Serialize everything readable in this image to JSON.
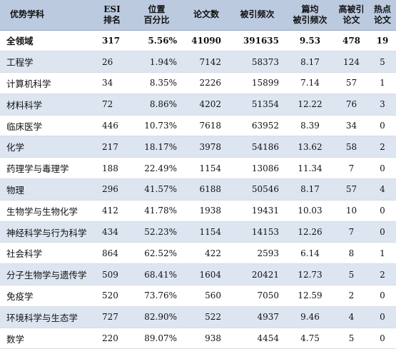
{
  "headers": {
    "subject": "优势学科",
    "rank_l1": "ESI",
    "rank_l2": "排名",
    "pct_l1": "位置",
    "pct_l2": "百分比",
    "papers": "论文数",
    "citations": "被引频次",
    "cpp_l1": "篇均",
    "cpp_l2": "被引频次",
    "hc_l1": "高被引",
    "hc_l2": "论文",
    "hot_l1": "热点",
    "hot_l2": "论文"
  },
  "total": {
    "subject": "全领域",
    "rank": "317",
    "pct": "5.56%",
    "papers": "41090",
    "citations": "391635",
    "cpp": "9.53",
    "hc": "478",
    "hot": "19"
  },
  "rows": [
    {
      "subject": "工程学",
      "rank": "26",
      "pct": "1.94%",
      "papers": "7142",
      "citations": "58373",
      "cpp": "8.17",
      "hc": "124",
      "hot": "5"
    },
    {
      "subject": "计算机科学",
      "rank": "34",
      "pct": "8.35%",
      "papers": "2226",
      "citations": "15899",
      "cpp": "7.14",
      "hc": "57",
      "hot": "1"
    },
    {
      "subject": "材料科学",
      "rank": "72",
      "pct": "8.86%",
      "papers": "4202",
      "citations": "51354",
      "cpp": "12.22",
      "hc": "76",
      "hot": "3"
    },
    {
      "subject": "临床医学",
      "rank": "446",
      "pct": "10.73%",
      "papers": "7618",
      "citations": "63952",
      "cpp": "8.39",
      "hc": "34",
      "hot": "0"
    },
    {
      "subject": "化学",
      "rank": "217",
      "pct": "18.17%",
      "papers": "3978",
      "citations": "54186",
      "cpp": "13.62",
      "hc": "58",
      "hot": "2"
    },
    {
      "subject": "药理学与毒理学",
      "rank": "188",
      "pct": "22.49%",
      "papers": "1154",
      "citations": "13086",
      "cpp": "11.34",
      "hc": "7",
      "hot": "0"
    },
    {
      "subject": "物理",
      "rank": "296",
      "pct": "41.57%",
      "papers": "6188",
      "citations": "50546",
      "cpp": "8.17",
      "hc": "57",
      "hot": "4"
    },
    {
      "subject": "生物学与生物化学",
      "rank": "412",
      "pct": "41.78%",
      "papers": "1938",
      "citations": "19431",
      "cpp": "10.03",
      "hc": "10",
      "hot": "0"
    },
    {
      "subject": "神经科学与行为科学",
      "rank": "434",
      "pct": "52.23%",
      "papers": "1154",
      "citations": "14153",
      "cpp": "12.26",
      "hc": "7",
      "hot": "0"
    },
    {
      "subject": "社会科学",
      "rank": "864",
      "pct": "62.52%",
      "papers": "422",
      "citations": "2593",
      "cpp": "6.14",
      "hc": "8",
      "hot": "1"
    },
    {
      "subject": "分子生物学与遗传学",
      "rank": "509",
      "pct": "68.41%",
      "papers": "1604",
      "citations": "20421",
      "cpp": "12.73",
      "hc": "5",
      "hot": "2"
    },
    {
      "subject": "免疫学",
      "rank": "520",
      "pct": "73.76%",
      "papers": "560",
      "citations": "7050",
      "cpp": "12.59",
      "hc": "2",
      "hot": "0"
    },
    {
      "subject": "环境科学与生态学",
      "rank": "727",
      "pct": "82.90%",
      "papers": "522",
      "citations": "4937",
      "cpp": "9.46",
      "hc": "4",
      "hot": "0"
    },
    {
      "subject": "数学",
      "rank": "220",
      "pct": "89.07%",
      "papers": "938",
      "citations": "4454",
      "cpp": "4.75",
      "hc": "5",
      "hot": "0"
    }
  ]
}
